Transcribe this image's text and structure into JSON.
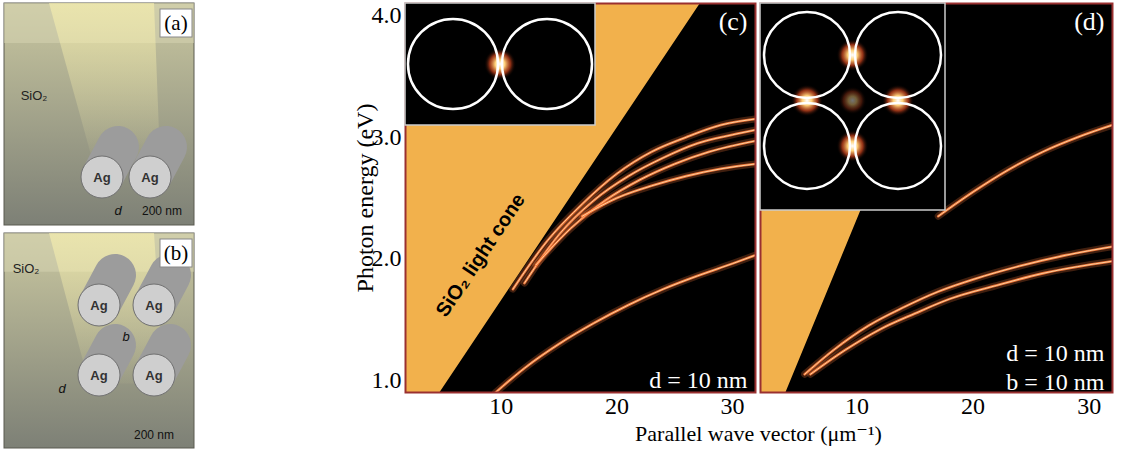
{
  "chart_data": [
    {
      "type": "line",
      "title": "(c)",
      "xlabel": "Parallel wave vector (μm⁻¹)",
      "ylabel": "Photon energy (eV)",
      "xlim": [
        1.7,
        32
      ],
      "ylim": [
        0.9,
        4.1
      ],
      "xticks": [
        10,
        20,
        30
      ],
      "yticks": [
        1,
        2,
        3,
        4
      ],
      "light_cone": {
        "x": [
          1.7,
          32
        ],
        "values": [
          0.474,
          4.777
        ],
        "color": "#f2b14c"
      },
      "series": [
        {
          "color": "#ff7b3a",
          "x": [
            9.5,
            12,
            15,
            18,
            21,
            24,
            27,
            30,
            32
          ],
          "values": [
            0.9,
            1.1,
            1.3,
            1.47,
            1.62,
            1.75,
            1.86,
            1.96,
            2.03
          ]
        },
        {
          "color": "#ff7b3a",
          "x": [
            11,
            14,
            17,
            20,
            23,
            26,
            29,
            32
          ],
          "values": [
            1.75,
            2.15,
            2.45,
            2.7,
            2.88,
            3.0,
            3.1,
            3.15
          ]
        },
        {
          "color": "#ff7b3a",
          "x": [
            12,
            15,
            18,
            21,
            24,
            27,
            30,
            32
          ],
          "values": [
            1.8,
            2.2,
            2.48,
            2.68,
            2.83,
            2.95,
            3.02,
            3.06
          ]
        },
        {
          "color": "#ff7b3a",
          "x": [
            13,
            16,
            19,
            22,
            25,
            28,
            32
          ],
          "values": [
            1.95,
            2.25,
            2.48,
            2.65,
            2.78,
            2.88,
            2.97
          ]
        },
        {
          "color": "#ff7b3a",
          "x": [
            17,
            20,
            23,
            26,
            29,
            32
          ],
          "values": [
            2.35,
            2.5,
            2.6,
            2.68,
            2.74,
            2.78
          ]
        }
      ],
      "annotations": [
        {
          "text": "SiO₂ light cone",
          "x": 8.2,
          "y": 2.03
        },
        {
          "text": "d = 10 nm",
          "x": 31.3,
          "y": 1.0
        }
      ]
    },
    {
      "type": "line",
      "title": "(d)",
      "xlim": [
        1.7,
        32
      ],
      "ylim": [
        0.9,
        4.1
      ],
      "xticks": [
        10,
        20,
        30
      ],
      "tick_labels": "x",
      "light_cone": {
        "x": [
          1.7,
          32
        ],
        "values": [
          0.39,
          7.42
        ],
        "color": "#f2b14c"
      },
      "series": [
        {
          "color": "#ff7b3a",
          "x": [
            5.5,
            8,
            11,
            14,
            17,
            20,
            24,
            28,
            32
          ],
          "values": [
            1.05,
            1.25,
            1.45,
            1.6,
            1.73,
            1.83,
            1.94,
            2.03,
            2.1
          ]
        },
        {
          "color": "#ff7b3a",
          "x": [
            6,
            9,
            12,
            15,
            18,
            22,
            26,
            32
          ],
          "values": [
            1.05,
            1.25,
            1.42,
            1.55,
            1.67,
            1.78,
            1.88,
            1.98
          ]
        },
        {
          "color": "#ff7b3a",
          "x": [
            17,
            20,
            23,
            26,
            29,
            32
          ],
          "values": [
            2.35,
            2.55,
            2.73,
            2.88,
            3.0,
            3.1
          ]
        }
      ],
      "annotations": [
        {
          "text": "d = 10 nm",
          "x": 31.3,
          "y": 1.22
        },
        {
          "text": "b = 10 nm",
          "x": 31.3,
          "y": 0.98
        }
      ]
    }
  ],
  "schematics": [
    {
      "panel": "(a)",
      "medium": "SiO₂",
      "cylinders": [
        "Ag",
        "Ag"
      ],
      "dimensions": [
        "d",
        "200 nm"
      ]
    },
    {
      "panel": "(b)",
      "medium": "SiO₂",
      "cylinders": [
        "Ag",
        "Ag",
        "Ag",
        "Ag"
      ],
      "dimensions": [
        "d",
        "b",
        "200 nm"
      ]
    }
  ]
}
